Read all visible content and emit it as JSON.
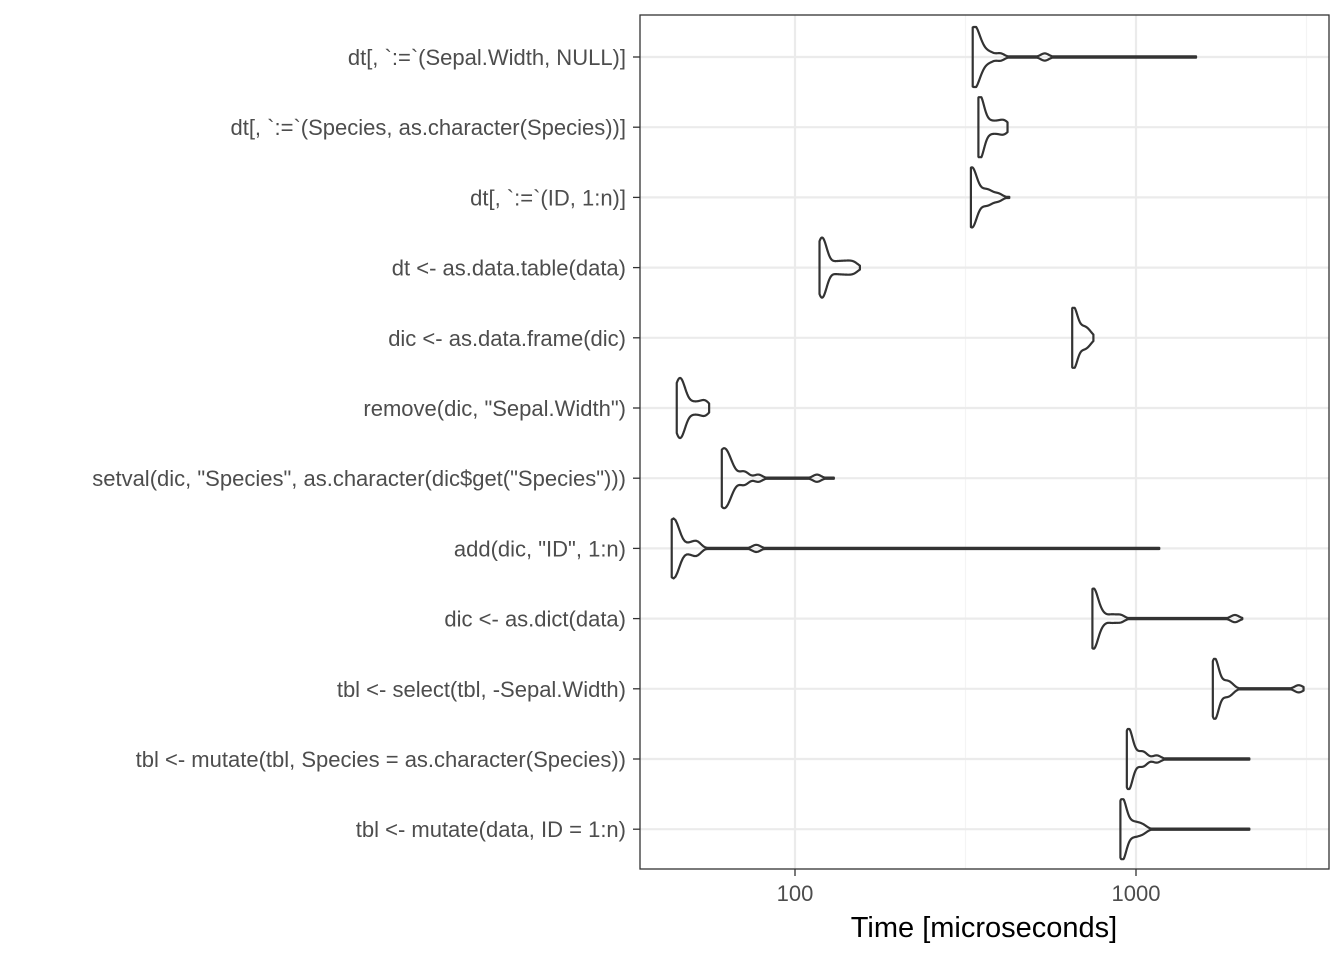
{
  "chart_data": {
    "type": "violin",
    "orientation": "horizontal",
    "xlabel": "Time [microseconds]",
    "ylabel": "",
    "x_scale": "log10",
    "xlim": [
      36,
      3200
    ],
    "x_ticks": [
      100,
      1000
    ],
    "x_tick_labels": [
      "100",
      "1000"
    ],
    "grid": true,
    "legend": "none",
    "theme": "bw",
    "colors": {
      "violin_stroke": "#333333",
      "grid_major": "#ebebeb",
      "grid_minor": "#f4f4f4",
      "panel_border": "#333333",
      "tick_text": "#4d4d4d",
      "axis_title": "#000000"
    },
    "categories": [
      "dt[, `:=`(Sepal.Width, NULL)]",
      "dt[, `:=`(Species, as.character(Species))]",
      "dt[, `:=`(ID, 1:n)]",
      "dt <- as.data.table(data)",
      "dic <- as.data.frame(dic)",
      "remove(dic, \"Sepal.Width\")",
      "setval(dic, \"Species\", as.character(dic$get(\"Species\")))",
      "add(dic, \"ID\", 1:n)",
      "dic <- as.dict(data)",
      "tbl <- select(tbl, -Sepal.Width)",
      "tbl <- mutate(tbl, Species = as.character(Species))",
      "tbl <- mutate(data, ID = 1:n)"
    ],
    "series": [
      {
        "category": "dt[, `:=`(Sepal.Width, NULL)]",
        "mode": 335,
        "min": 332,
        "max": 1500,
        "spread": [
          322,
          360
        ],
        "outliers": [
          350,
          360,
          375,
          400,
          540
        ]
      },
      {
        "category": "dt[, `:=`(Species, as.character(Species))]",
        "mode": 348,
        "min": 345,
        "max": 420,
        "spread": [
          342,
          365
        ],
        "outliers": [
          362,
          375,
          390,
          405,
          415
        ]
      },
      {
        "category": "dt[, `:=`(ID, 1:n)]",
        "mode": 330,
        "min": 328,
        "max": 425,
        "spread": [
          322,
          360
        ],
        "outliers": [
          355,
          365,
          375,
          395
        ]
      },
      {
        "category": "dt <- as.data.table(data)",
        "mode": 120,
        "min": 118,
        "max": 155,
        "spread": [
          117,
          130
        ],
        "outliers": [
          130,
          135,
          140,
          145,
          150
        ]
      },
      {
        "category": "dic <- as.data.frame(dic)",
        "mode": 655,
        "min": 650,
        "max": 750,
        "spread": [
          648,
          690
        ],
        "outliers": [
          690,
          700,
          715,
          730
        ]
      },
      {
        "category": "remove(dic, \"Sepal.Width\")",
        "mode": 46,
        "min": 45,
        "max": 56,
        "spread": [
          44.5,
          50
        ],
        "outliers": [
          50,
          52,
          54,
          55
        ]
      },
      {
        "category": "setval(dic, \"Species\", as.character(dic$get(\"Species\")))",
        "mode": 62,
        "min": 61,
        "max": 130,
        "spread": [
          60,
          70
        ],
        "outliers": [
          70,
          72,
          78,
          116
        ]
      },
      {
        "category": "add(dic, \"ID\", 1:n)",
        "mode": 44,
        "min": 43.5,
        "max": 1170,
        "spread": [
          43,
          49
        ],
        "outliers": [
          49,
          51,
          52,
          77
        ]
      },
      {
        "category": "dic <- as.dict(data)",
        "mode": 750,
        "min": 745,
        "max": 2050,
        "spread": [
          740,
          820
        ],
        "outliers": [
          800,
          850,
          900,
          1950
        ]
      },
      {
        "category": "tbl <- select(tbl, -Sepal.Width)",
        "mode": 1700,
        "min": 1680,
        "max": 3100,
        "spread": [
          1670,
          1800
        ],
        "outliers": [
          1800,
          1850,
          1900,
          3000
        ]
      },
      {
        "category": "tbl <- mutate(tbl, Species = as.character(Species))",
        "mode": 950,
        "min": 940,
        "max": 2150,
        "spread": [
          930,
          1000
        ],
        "outliers": [
          1000,
          1040,
          1060,
          1150
        ]
      },
      {
        "category": "tbl <- mutate(data, ID = 1:n)",
        "mode": 910,
        "min": 900,
        "max": 2150,
        "spread": [
          895,
          960
        ],
        "outliers": [
          950,
          980,
          1010,
          1050
        ]
      }
    ]
  }
}
